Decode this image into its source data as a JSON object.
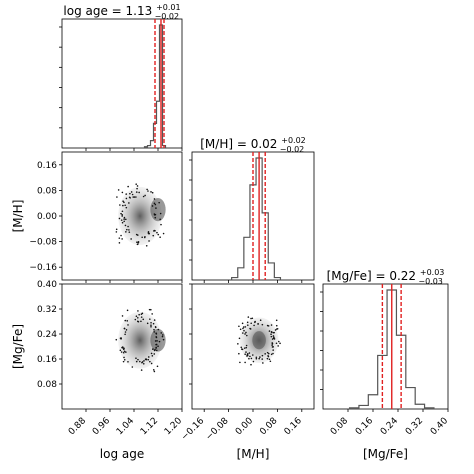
{
  "chart_data": {
    "type": "corner",
    "parameters": [
      {
        "name": "log age",
        "range": [
          0.8,
          1.2
        ],
        "ticks": [
          "0.88",
          "0.96",
          "1.04",
          "1.12",
          "1.20"
        ],
        "tick_values": [
          0.88,
          0.96,
          1.04,
          1.12,
          1.2
        ]
      },
      {
        "name": "[M/H]",
        "range": [
          -0.2,
          0.2
        ],
        "ticks": [
          "-0.16",
          "-0.08",
          "0.00",
          "0.08",
          "0.16"
        ],
        "tick_values": [
          -0.16,
          -0.08,
          0.0,
          0.08,
          0.16
        ]
      },
      {
        "name": "[Mg/Fe]",
        "range": [
          0.0,
          0.4
        ],
        "ticks": [
          "0.08",
          "0.16",
          "0.24",
          "0.32",
          "0.40"
        ],
        "tick_values": [
          0.08,
          0.16,
          0.24,
          0.32,
          0.4
        ]
      }
    ],
    "titles": [
      {
        "label": "log age = 1.13",
        "sup": "+0.01",
        "sub": "−0.02"
      },
      {
        "label": "[M/H] = 0.02",
        "sup": "+0.02",
        "sub": "−0.02"
      },
      {
        "label": "[Mg/Fe] = 0.22",
        "sup": "+0.03",
        "sub": "−0.03"
      }
    ],
    "summary": [
      {
        "median": 1.13,
        "lo": 1.11,
        "hi": 1.14
      },
      {
        "median": 0.02,
        "lo": 0.0,
        "hi": 0.04
      },
      {
        "median": 0.22,
        "lo": 0.19,
        "hi": 0.25
      }
    ],
    "histograms": [
      {
        "x": [
          1.08,
          1.09,
          1.1,
          1.11,
          1.12,
          1.13,
          1.14
        ],
        "counts": [
          0.01,
          0.02,
          0.06,
          0.2,
          0.38,
          1.0,
          0.02
        ]
      },
      {
        "x": [
          -0.06,
          -0.04,
          -0.02,
          0.0,
          0.02,
          0.04,
          0.06,
          0.08
        ],
        "counts": [
          0.02,
          0.1,
          0.35,
          0.78,
          1.0,
          0.55,
          0.14,
          0.02
        ]
      },
      {
        "x": [
          0.1,
          0.13,
          0.16,
          0.19,
          0.22,
          0.25,
          0.28,
          0.31,
          0.34
        ],
        "counts": [
          0.01,
          0.03,
          0.12,
          0.45,
          1.0,
          0.62,
          0.18,
          0.04,
          0.01
        ]
      }
    ],
    "scatter": [
      {
        "x_param": "log age",
        "y_param": "[M/H]",
        "x_extent": [
          0.98,
          1.14
        ],
        "y_extent": [
          -0.1,
          0.1
        ],
        "peak": [
          1.12,
          0.02
        ]
      },
      {
        "x_param": "log age",
        "y_param": "[Mg/Fe]",
        "x_extent": [
          0.98,
          1.14
        ],
        "y_extent": [
          0.12,
          0.32
        ],
        "peak": [
          1.12,
          0.22
        ]
      },
      {
        "x_param": "[M/H]",
        "y_param": "[Mg/Fe]",
        "x_extent": [
          -0.05,
          0.09
        ],
        "y_extent": [
          0.14,
          0.3
        ],
        "peak": [
          0.02,
          0.22
        ]
      }
    ],
    "quantile_line_color": "#e02020",
    "hist_color": "#555555"
  }
}
